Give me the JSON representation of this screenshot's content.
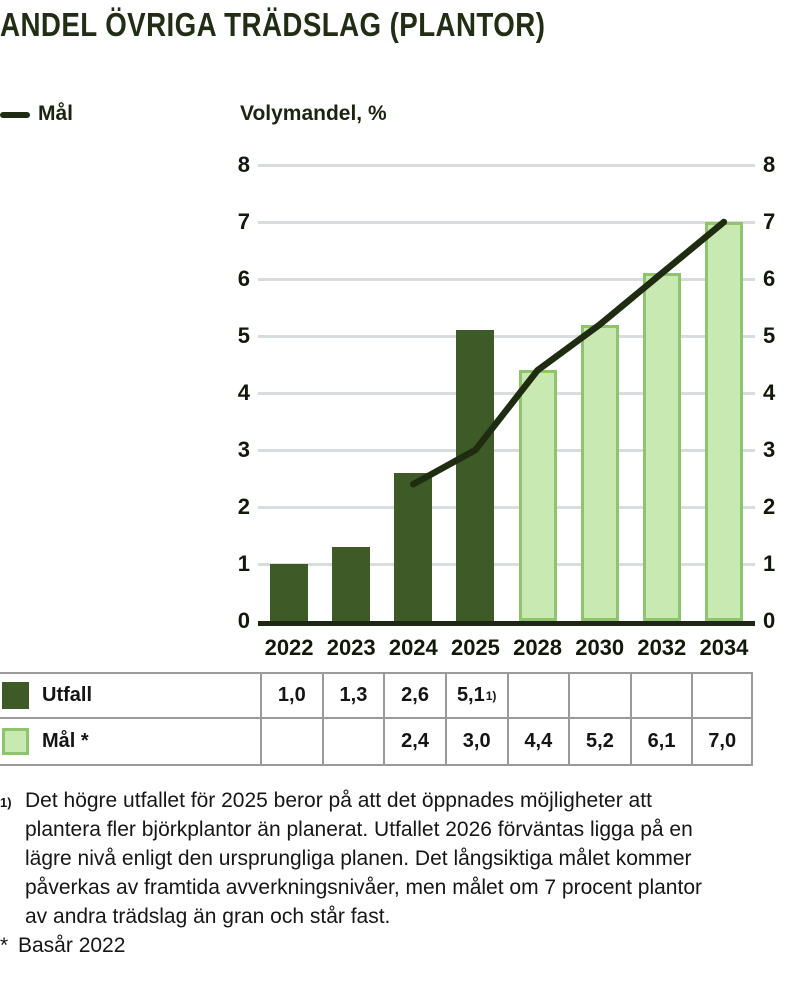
{
  "title": "ANDEL ÖVRIGA TRÄDSLAG (PLANTOR)",
  "legend": {
    "target_label": "Mål",
    "y_axis_title": "Volymandel, %"
  },
  "chart_data": {
    "type": "bar",
    "subtype": "bar+line combo, dual y-axis labels",
    "categories": [
      "2022",
      "2023",
      "2024",
      "2025",
      "2028",
      "2030",
      "2032",
      "2034"
    ],
    "series": [
      {
        "name": "Utfall",
        "type": "bar",
        "color": "#3d5a27",
        "values": [
          1.0,
          1.3,
          2.6,
          5.1,
          null,
          null,
          null,
          null
        ]
      },
      {
        "name": "Mål",
        "type": "bar",
        "color": "#c9e9b2",
        "border_color": "#8fc46e",
        "values": [
          null,
          null,
          null,
          null,
          4.4,
          5.2,
          6.1,
          7.0
        ]
      },
      {
        "name": "Mål",
        "type": "line",
        "color": "#202c12",
        "values": [
          null,
          null,
          2.4,
          3.0,
          4.4,
          5.2,
          6.1,
          7.0
        ]
      }
    ],
    "title": "ANDEL ÖVRIGA TRÄDSLAG (PLANTOR)",
    "xlabel": "",
    "ylabel": "Volymandel, %",
    "ylim": [
      0,
      8
    ],
    "y_ticks": [
      "0",
      "1",
      "2",
      "3",
      "4",
      "5",
      "6",
      "7",
      "8"
    ],
    "grid": true,
    "legend_position": "top-left"
  },
  "table": {
    "rows": [
      {
        "label": "Utfall",
        "swatch": "utfall",
        "footnote_marker": "1)",
        "values": [
          "1,0",
          "1,3",
          "2,6",
          "5,1",
          "",
          "",
          "",
          ""
        ]
      },
      {
        "label": "Mål *",
        "swatch": "mal",
        "footnote_marker": "",
        "values": [
          "",
          "",
          "2,4",
          "3,0",
          "4,4",
          "5,2",
          "6,1",
          "7,0"
        ]
      }
    ]
  },
  "footnotes": {
    "marker": "1)",
    "note": "Det högre utfallet för 2025 beror på att det öppnades möjligheter att plantera fler björkplantor än planerat. Utfallet 2026 förväntas ligga på en lägre nivå enligt den ursprungliga planen. Det långsiktiga målet kommer påverkas av framtida avverkningsnivåer, men målet om 7 procent plantor av andra trädslag än gran och står fast.",
    "base_year_marker": "*",
    "base_year": "Basår 2022"
  },
  "colors": {
    "ink": "#1d2a12",
    "utfall_bar": "#3d5a27",
    "mal_bar_fill": "#c9e9b2",
    "mal_bar_border": "#8fc46e",
    "target_line": "#202c12",
    "gridline": "#d8dcde",
    "table_border": "#9a9a9a",
    "background": "#ffffff"
  }
}
